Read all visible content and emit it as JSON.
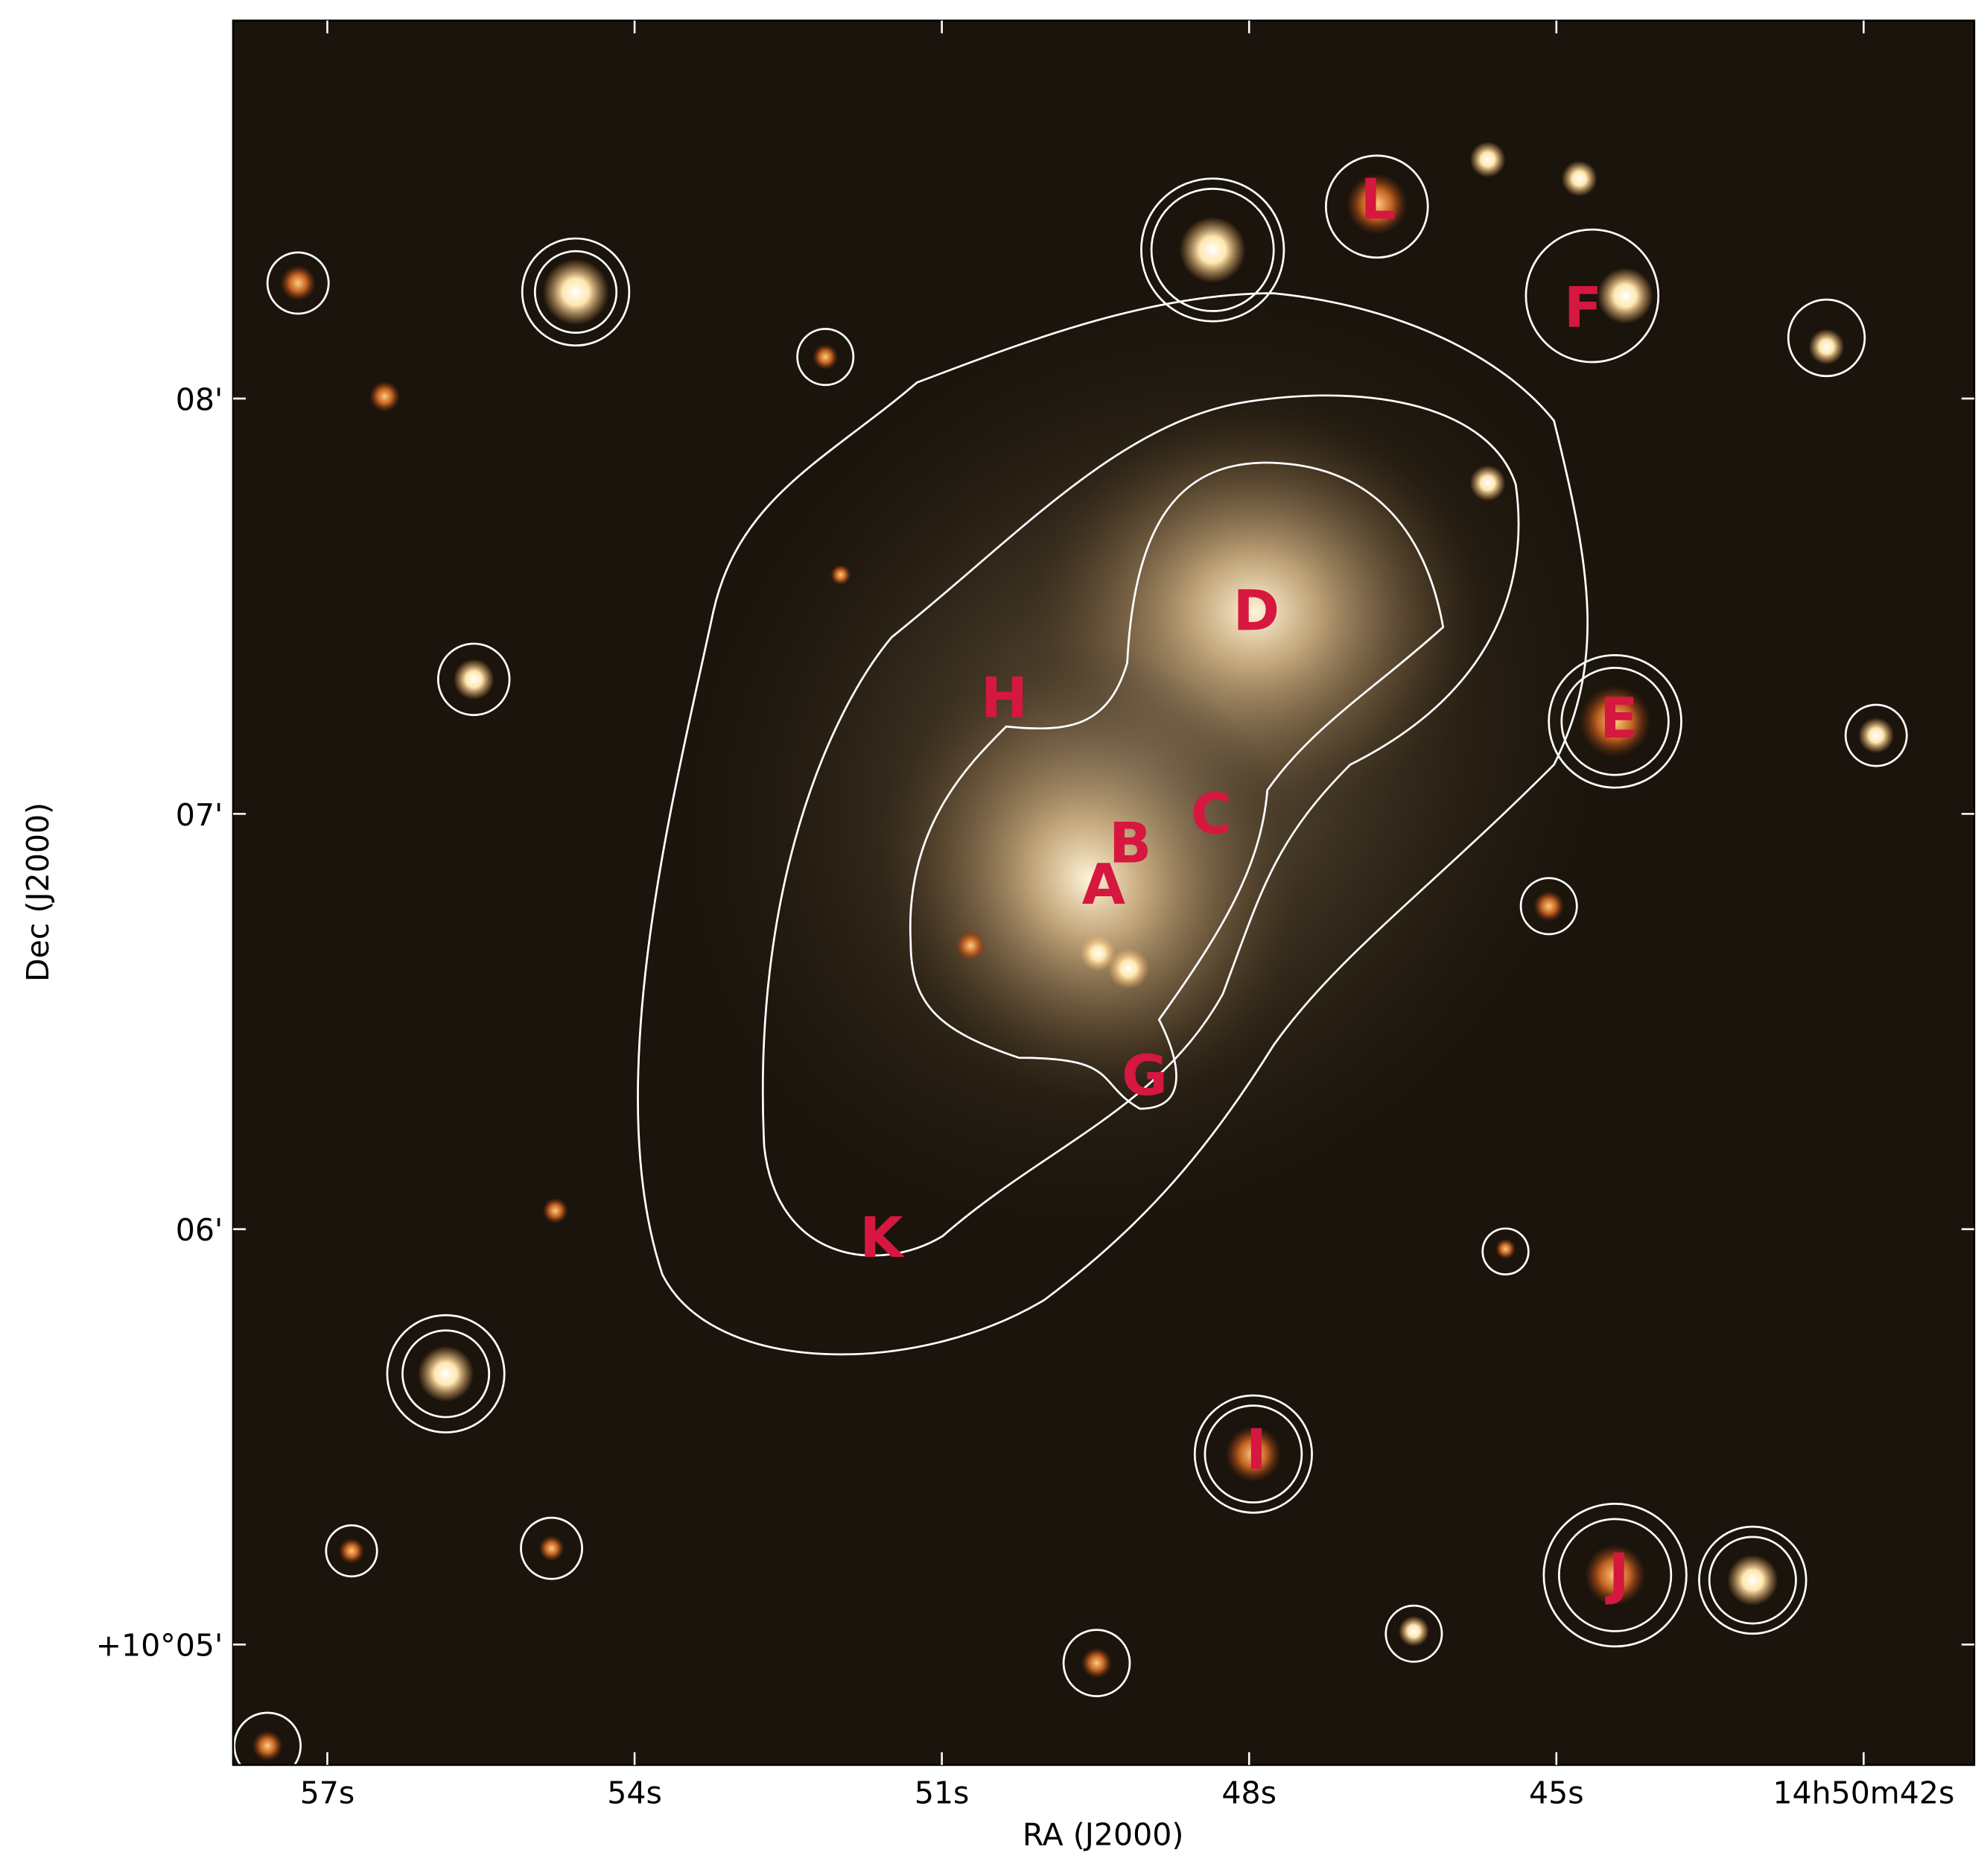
{
  "chart_data": {
    "type": "image",
    "xlabel": "RA (J2000)",
    "ylabel": "Dec (J2000)",
    "xlim": [
      57.92,
      40.92
    ],
    "ylim": [
      4.71,
      8.91
    ],
    "xticks": [
      {
        "value": 57,
        "label": "57s"
      },
      {
        "value": 54,
        "label": "54s"
      },
      {
        "value": 51,
        "label": "51s"
      },
      {
        "value": 48,
        "label": "48s"
      },
      {
        "value": 45,
        "label": "45s"
      },
      {
        "value": 42,
        "label": "14h50m42s"
      }
    ],
    "yticks": [
      {
        "value": 8,
        "label": "08'"
      },
      {
        "value": 7,
        "label": "07'"
      },
      {
        "value": 6,
        "label": "06'"
      },
      {
        "value": 5,
        "label": "+10°05'"
      }
    ],
    "label_color": "#d6173f",
    "annotations": [
      {
        "text": "D",
        "x": 47.93,
        "y": 7.48
      },
      {
        "text": "H",
        "x": 50.39,
        "y": 7.27
      },
      {
        "text": "C",
        "x": 48.37,
        "y": 6.99
      },
      {
        "text": "B",
        "x": 49.16,
        "y": 6.92
      },
      {
        "text": "A",
        "x": 49.42,
        "y": 6.82
      },
      {
        "text": "G",
        "x": 49.02,
        "y": 6.36
      },
      {
        "text": "K",
        "x": 51.59,
        "y": 5.97
      },
      {
        "text": "E",
        "x": 44.39,
        "y": 7.22
      },
      {
        "text": "F",
        "x": 44.74,
        "y": 8.21
      },
      {
        "text": "L",
        "x": 46.74,
        "y": 8.47
      },
      {
        "text": "I",
        "x": 47.93,
        "y": 5.46
      },
      {
        "text": "J",
        "x": 44.39,
        "y": 5.16
      }
    ]
  }
}
